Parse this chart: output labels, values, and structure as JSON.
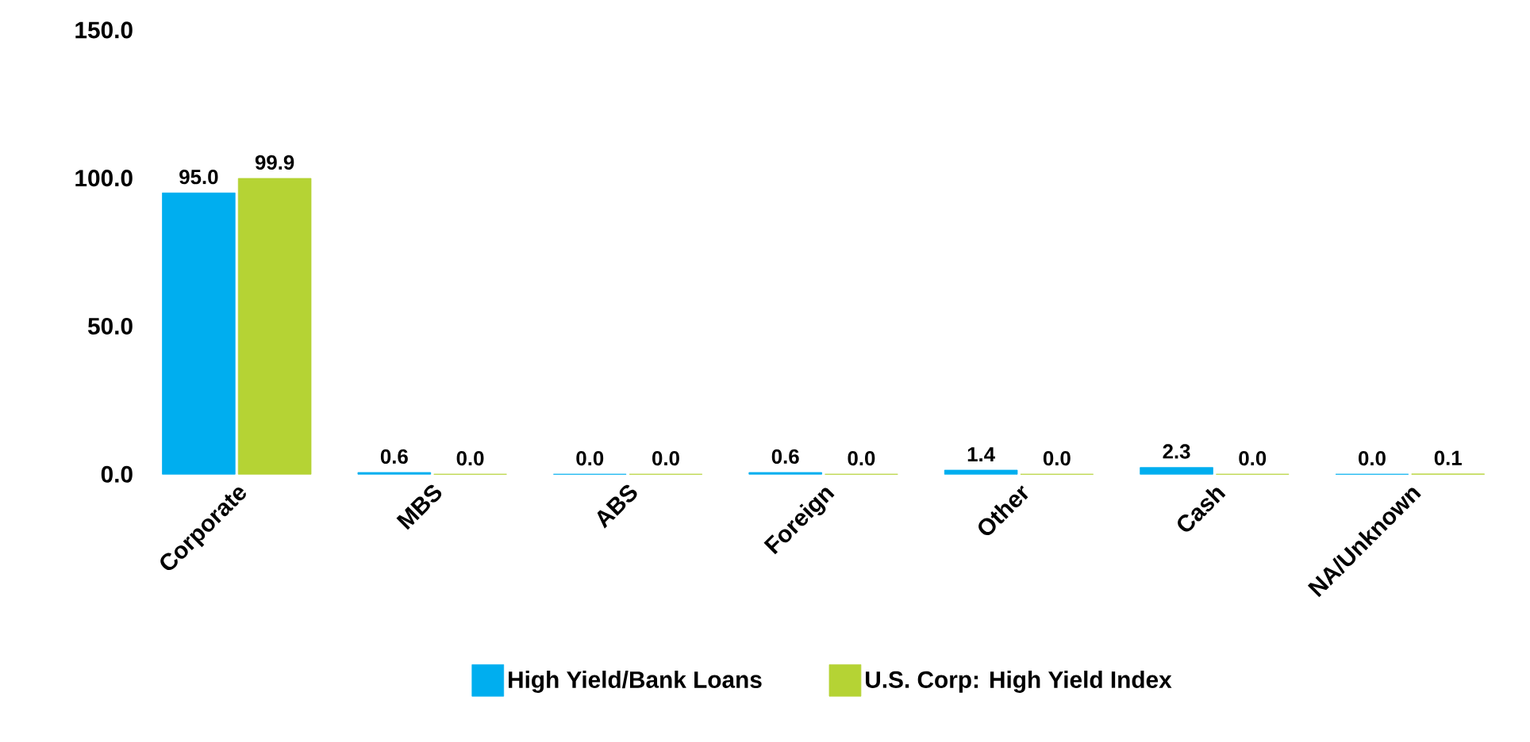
{
  "chart_data": {
    "type": "bar",
    "categories": [
      "Corporate",
      "MBS",
      "ABS",
      "Foreign",
      "Other",
      "Cash",
      "NA/Unknown"
    ],
    "series": [
      {
        "name": "High Yield/Bank Loans",
        "color": "#00aeef",
        "values": [
          95.0,
          0.6,
          0.0,
          0.6,
          1.4,
          2.3,
          0.0
        ],
        "value_labels": [
          "95.0",
          "0.6",
          "0.0",
          "0.6",
          "1.4",
          "2.3",
          "0.0"
        ]
      },
      {
        "name": "U.S. Corp: High Yield Index",
        "color": "#b5d334",
        "values": [
          99.9,
          0.0,
          0.0,
          0.0,
          0.0,
          0.0,
          0.1
        ],
        "value_labels": [
          "99.9",
          "0.0",
          "0.0",
          "0.0",
          "0.0",
          "0.0",
          "0.1"
        ]
      }
    ],
    "ylim": [
      0,
      150
    ],
    "yticks": [
      {
        "value": 0,
        "label": "0.0"
      },
      {
        "value": 50,
        "label": "50.0"
      },
      {
        "value": 100,
        "label": "100.0"
      },
      {
        "value": 150,
        "label": "150.0"
      }
    ],
    "grid": false,
    "legend": "bottom"
  }
}
